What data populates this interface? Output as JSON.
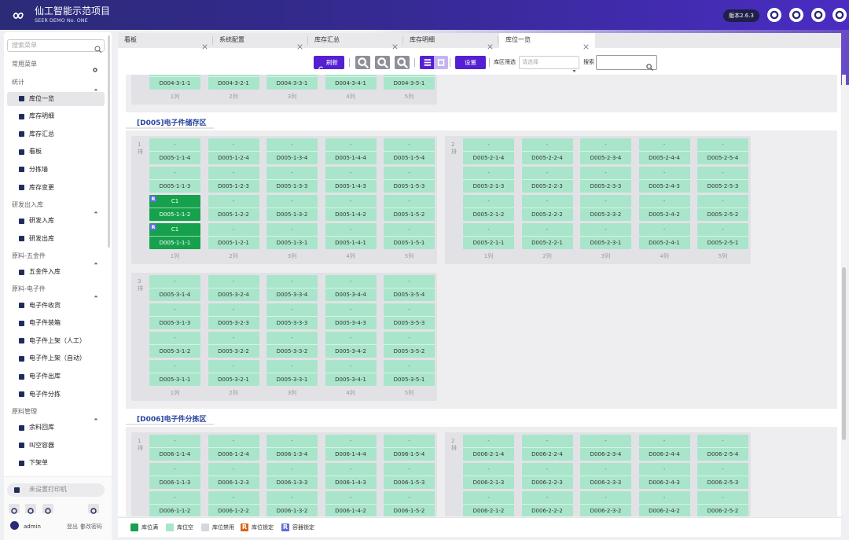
{
  "header": {
    "title": "仙工智能示范项目",
    "subtitle": "SEER DEMO No. ONE",
    "version": "版本2.6.3"
  },
  "sidebar": {
    "search_placeholder": "搜索菜单",
    "common": "常用菜单",
    "active": [
      0,
      0
    ],
    "groups": [
      {
        "title": "统计",
        "items": [
          "库位一览",
          "库存明细",
          "库存汇总",
          "看板",
          "分拣墙",
          "库存变更"
        ]
      },
      {
        "title": "研发出入库",
        "items": [
          "研发入库",
          "研发出库"
        ]
      },
      {
        "title": "原料-五金件",
        "items": [
          "五金件入库"
        ]
      },
      {
        "title": "原料-电子件",
        "items": [
          "电子件收货",
          "电子件装箱",
          "电子件上架（人工）",
          "电子件上架（自动）",
          "电子件出库",
          "电子件分拣"
        ]
      },
      {
        "title": "原料管理",
        "items": [
          "余料回库",
          "叫空容器",
          "下架单"
        ]
      }
    ],
    "printer": "未设置打印机",
    "user": "admin",
    "logout": "登出",
    "change_password": "修改密码"
  },
  "tabs": {
    "labels": [
      "看板",
      "系统配置",
      "库存汇总",
      "库存明细",
      "库位一览"
    ],
    "active": 4
  },
  "toolbar": {
    "refresh": "刷新",
    "settings": "设置",
    "zone_filter": "库区筛选",
    "select_placeholder": "请选择",
    "search": "搜索"
  },
  "main": {
    "zones": [
      {
        "columns": [
          "1列",
          "2列",
          "3列",
          "4列",
          "5列"
        ],
        "blocks": [
          {
            "rows": [
              [
                {
                  "code": "D004-3-1-1"
                },
                {
                  "code": "D004-3-2-1"
                },
                {
                  "code": "D004-3-3-1"
                },
                {
                  "code": "D004-3-4-1"
                },
                {
                  "code": "D004-3-5-1"
                }
              ]
            ]
          }
        ]
      },
      {
        "title": "[D005]电子件储存区",
        "columns": [
          "1列",
          "2列",
          "3列",
          "4列",
          "5列"
        ],
        "blocks": [
          {
            "row_label": [
              "1",
              "排"
            ],
            "rows": [
              [
                {
                  "top": "-",
                  "code": "D005-1-1-4"
                },
                {
                  "top": "-",
                  "code": "D005-1-2-4"
                },
                {
                  "top": "-",
                  "code": "D005-1-3-4"
                },
                {
                  "top": "-",
                  "code": "D005-1-4-4"
                },
                {
                  "top": "-",
                  "code": "D005-1-5-4"
                }
              ],
              [
                {
                  "top": "-",
                  "code": "D005-1-1-3"
                },
                {
                  "top": "-",
                  "code": "D005-1-2-3"
                },
                {
                  "top": "-",
                  "code": "D005-1-3-3"
                },
                {
                  "top": "-",
                  "code": "D005-1-4-3"
                },
                {
                  "top": "-",
                  "code": "D005-1-5-3"
                }
              ],
              [
                {
                  "top": "C1",
                  "code": "D005-1-1-2",
                  "status": "full",
                  "badge": "R"
                },
                {
                  "top": "-",
                  "code": "D005-1-2-2"
                },
                {
                  "top": "-",
                  "code": "D005-1-3-2"
                },
                {
                  "top": "-",
                  "code": "D005-1-4-2"
                },
                {
                  "top": "-",
                  "code": "D005-1-5-2"
                }
              ],
              [
                {
                  "top": "C1",
                  "code": "D005-1-1-1",
                  "status": "full",
                  "badge": "R"
                },
                {
                  "top": "-",
                  "code": "D005-1-2-1"
                },
                {
                  "top": "-",
                  "code": "D005-1-3-1"
                },
                {
                  "top": "-",
                  "code": "D005-1-4-1"
                },
                {
                  "top": "-",
                  "code": "D005-1-5-1"
                }
              ]
            ]
          },
          {
            "row_label": [
              "2",
              "排"
            ],
            "rows": [
              [
                {
                  "top": "-",
                  "code": "D005-2-1-4"
                },
                {
                  "top": "-",
                  "code": "D005-2-2-4"
                },
                {
                  "top": "-",
                  "code": "D005-2-3-4"
                },
                {
                  "top": "-",
                  "code": "D005-2-4-4"
                },
                {
                  "top": "-",
                  "code": "D005-2-5-4"
                }
              ],
              [
                {
                  "top": "-",
                  "code": "D005-2-1-3"
                },
                {
                  "top": "-",
                  "code": "D005-2-2-3"
                },
                {
                  "top": "-",
                  "code": "D005-2-3-3"
                },
                {
                  "top": "-",
                  "code": "D005-2-4-3"
                },
                {
                  "top": "-",
                  "code": "D005-2-5-3"
                }
              ],
              [
                {
                  "top": "-",
                  "code": "D005-2-1-2"
                },
                {
                  "top": "-",
                  "code": "D005-2-2-2"
                },
                {
                  "top": "-",
                  "code": "D005-2-3-2"
                },
                {
                  "top": "-",
                  "code": "D005-2-4-2"
                },
                {
                  "top": "-",
                  "code": "D005-2-5-2"
                }
              ],
              [
                {
                  "top": "-",
                  "code": "D005-2-1-1"
                },
                {
                  "top": "-",
                  "code": "D005-2-2-1"
                },
                {
                  "top": "-",
                  "code": "D005-2-3-1"
                },
                {
                  "top": "-",
                  "code": "D005-2-4-1"
                },
                {
                  "top": "-",
                  "code": "D005-2-5-1"
                }
              ]
            ]
          },
          {
            "row_label": [
              "3",
              "排"
            ],
            "rows": [
              [
                {
                  "top": "-",
                  "code": "D005-3-1-4"
                },
                {
                  "top": "-",
                  "code": "D005-3-2-4"
                },
                {
                  "top": "-",
                  "code": "D005-3-3-4"
                },
                {
                  "top": "-",
                  "code": "D005-3-4-4"
                },
                {
                  "top": "-",
                  "code": "D005-3-5-4"
                }
              ],
              [
                {
                  "top": "-",
                  "code": "D005-3-1-3"
                },
                {
                  "top": "-",
                  "code": "D005-3-2-3"
                },
                {
                  "top": "-",
                  "code": "D005-3-3-3"
                },
                {
                  "top": "-",
                  "code": "D005-3-4-3"
                },
                {
                  "top": "-",
                  "code": "D005-3-5-3"
                }
              ],
              [
                {
                  "top": "-",
                  "code": "D005-3-1-2"
                },
                {
                  "top": "-",
                  "code": "D005-3-2-2"
                },
                {
                  "top": "-",
                  "code": "D005-3-3-2"
                },
                {
                  "top": "-",
                  "code": "D005-3-4-2"
                },
                {
                  "top": "-",
                  "code": "D005-3-5-2"
                }
              ],
              [
                {
                  "top": "-",
                  "code": "D005-3-1-1"
                },
                {
                  "top": "-",
                  "code": "D005-3-2-1"
                },
                {
                  "top": "-",
                  "code": "D005-3-3-1"
                },
                {
                  "top": "-",
                  "code": "D005-3-4-1"
                },
                {
                  "top": "-",
                  "code": "D005-3-5-1"
                }
              ]
            ]
          }
        ]
      },
      {
        "title": "[D006]电子件分拣区",
        "blocks": [
          {
            "row_label": [
              "1",
              "排"
            ],
            "rows": [
              [
                {
                  "top": "-",
                  "code": "D006-1-1-4"
                },
                {
                  "top": "-",
                  "code": "D006-1-2-4"
                },
                {
                  "top": "-",
                  "code": "D006-1-3-4"
                },
                {
                  "top": "-",
                  "code": "D006-1-4-4"
                },
                {
                  "top": "-",
                  "code": "D006-1-5-4"
                }
              ],
              [
                {
                  "top": "-",
                  "code": "D006-1-1-3"
                },
                {
                  "top": "-",
                  "code": "D006-1-2-3"
                },
                {
                  "top": "-",
                  "code": "D006-1-3-3"
                },
                {
                  "top": "-",
                  "code": "D006-1-4-3"
                },
                {
                  "top": "-",
                  "code": "D006-1-5-3"
                }
              ],
              [
                {
                  "top": "-",
                  "code": "D006-1-1-2"
                },
                {
                  "top": "-",
                  "code": "D006-1-2-2"
                },
                {
                  "top": "-",
                  "code": "D006-1-3-2"
                },
                {
                  "top": "-",
                  "code": "D006-1-4-2"
                },
                {
                  "top": "-",
                  "code": "D006-1-5-2"
                }
              ]
            ]
          },
          {
            "row_label": [
              "2",
              "排"
            ],
            "rows": [
              [
                {
                  "top": "-",
                  "code": "D006-2-1-4"
                },
                {
                  "top": "-",
                  "code": "D006-2-2-4"
                },
                {
                  "top": "-",
                  "code": "D006-2-3-4"
                },
                {
                  "top": "-",
                  "code": "D006-2-4-4"
                },
                {
                  "top": "-",
                  "code": "D006-2-5-4"
                }
              ],
              [
                {
                  "top": "-",
                  "code": "D006-2-1-3"
                },
                {
                  "top": "-",
                  "code": "D006-2-2-3"
                },
                {
                  "top": "-",
                  "code": "D006-2-3-3"
                },
                {
                  "top": "-",
                  "code": "D006-2-4-3"
                },
                {
                  "top": "-",
                  "code": "D006-2-5-3"
                }
              ],
              [
                {
                  "top": "-",
                  "code": "D006-2-1-2"
                },
                {
                  "top": "-",
                  "code": "D006-2-2-2"
                },
                {
                  "top": "-",
                  "code": "D006-2-3-2"
                },
                {
                  "top": "-",
                  "code": "D006-2-4-2"
                },
                {
                  "top": "-",
                  "code": "D006-2-5-2"
                }
              ]
            ]
          }
        ]
      }
    ]
  },
  "legend": [
    {
      "label": "库位满",
      "color": "#16a14d"
    },
    {
      "label": "库位空",
      "color": "#a9e5ca"
    },
    {
      "label": "库位禁用",
      "color": "#d6d6dd"
    },
    {
      "label": "库位锁定",
      "color": "#d9651d",
      "badge": "R"
    },
    {
      "label": "容器锁定",
      "color": "#5c6fd9",
      "badge": "R"
    }
  ]
}
